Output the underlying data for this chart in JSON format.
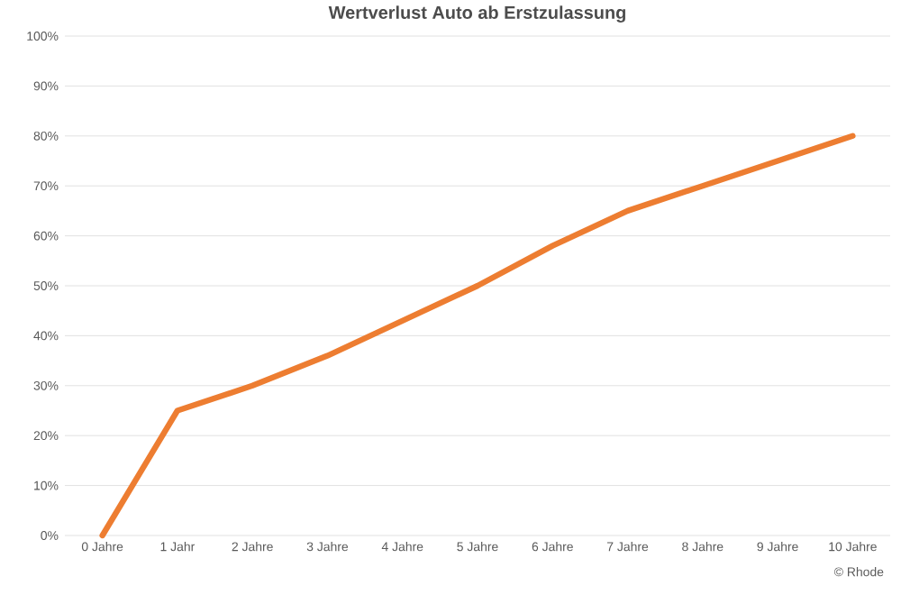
{
  "chart_data": {
    "type": "line",
    "title": "Wertverlust Auto ab Erstzulassung",
    "categories": [
      "0 Jahre",
      "1 Jahr",
      "2 Jahre",
      "3 Jahre",
      "4 Jahre",
      "5 Jahre",
      "6 Jahre",
      "7 Jahre",
      "8 Jahre",
      "9 Jahre",
      "10 Jahre"
    ],
    "series": [
      {
        "color": "#ed7d31",
        "values": [
          0,
          25,
          30,
          36,
          43,
          50,
          58,
          65,
          70,
          75,
          80
        ]
      }
    ],
    "ylim": [
      0,
      100
    ],
    "yticks": [
      {
        "value": 0,
        "label": "0%"
      },
      {
        "value": 10,
        "label": "10%"
      },
      {
        "value": 20,
        "label": "20%"
      },
      {
        "value": 30,
        "label": "30%"
      },
      {
        "value": 40,
        "label": "40%"
      },
      {
        "value": 50,
        "label": "50%"
      },
      {
        "value": 60,
        "label": "60%"
      },
      {
        "value": 70,
        "label": "70%"
      },
      {
        "value": 80,
        "label": "80%"
      },
      {
        "value": 90,
        "label": "90%"
      },
      {
        "value": 100,
        "label": "100%"
      }
    ],
    "grid": "y",
    "marker": "none",
    "line_style": "solid",
    "annotations": [
      "© Rhode"
    ]
  }
}
